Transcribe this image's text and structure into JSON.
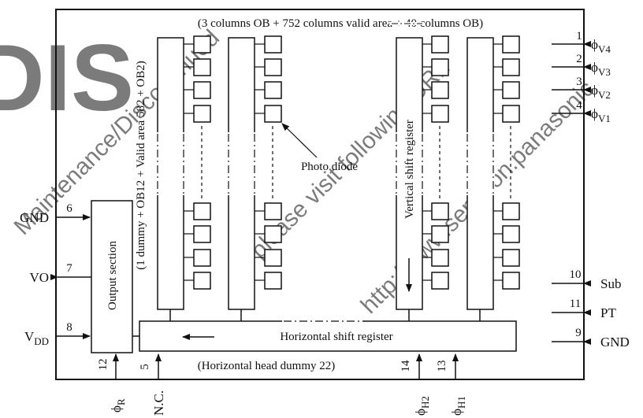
{
  "colors": {
    "line": "#111111",
    "watermark": "#e8a3a8",
    "logo": "#e63946",
    "background": "#ffffff"
  },
  "logo_text": "DIS",
  "watermark_lines": [
    "Maintenance/Discontinued",
    "please visit following URL",
    "http://www.semicon.panasonic"
  ],
  "top_caption": "(3 columns OB + 752 columns valid area + 40 columns OB)",
  "left_column_caption": "(1 dummy + OB12 + Valid area 582 + OB2)",
  "output_section_label": "Output section",
  "photo_diode_label": "Photo diode",
  "vertical_shift_register_label": "Vertical shift register",
  "horizontal_shift_register_label": "Horizontal shift register",
  "horizontal_head_dummy_label": "(Horizontal head dummy 22)",
  "left_pins": [
    {
      "name": "GND",
      "sub": "",
      "number": "6"
    },
    {
      "name": "VO",
      "sub": "",
      "number": "7"
    },
    {
      "name": "V",
      "sub": "DD",
      "number": "8"
    }
  ],
  "right_pins": [
    {
      "symbol": "ϕ",
      "sub": "V4",
      "number": "1"
    },
    {
      "symbol": "ϕ",
      "sub": "V3",
      "number": "2"
    },
    {
      "symbol": "ϕ",
      "sub": "V2",
      "number": "3"
    },
    {
      "symbol": "ϕ",
      "sub": "V1",
      "number": "4"
    },
    {
      "symbol": "Sub",
      "sub": "",
      "number": "10"
    },
    {
      "symbol": "PT",
      "sub": "",
      "number": "11"
    },
    {
      "symbol": "GND",
      "sub": "",
      "number": "9"
    }
  ],
  "bottom_pins": [
    {
      "symbol": "ϕ",
      "sub": "R",
      "number": "12"
    },
    {
      "symbol": "N.C.",
      "sub": "",
      "number": "5"
    },
    {
      "symbol": "ϕ",
      "sub": "H2",
      "number": "14"
    },
    {
      "symbol": "ϕ",
      "sub": "H1",
      "number": "13"
    }
  ]
}
